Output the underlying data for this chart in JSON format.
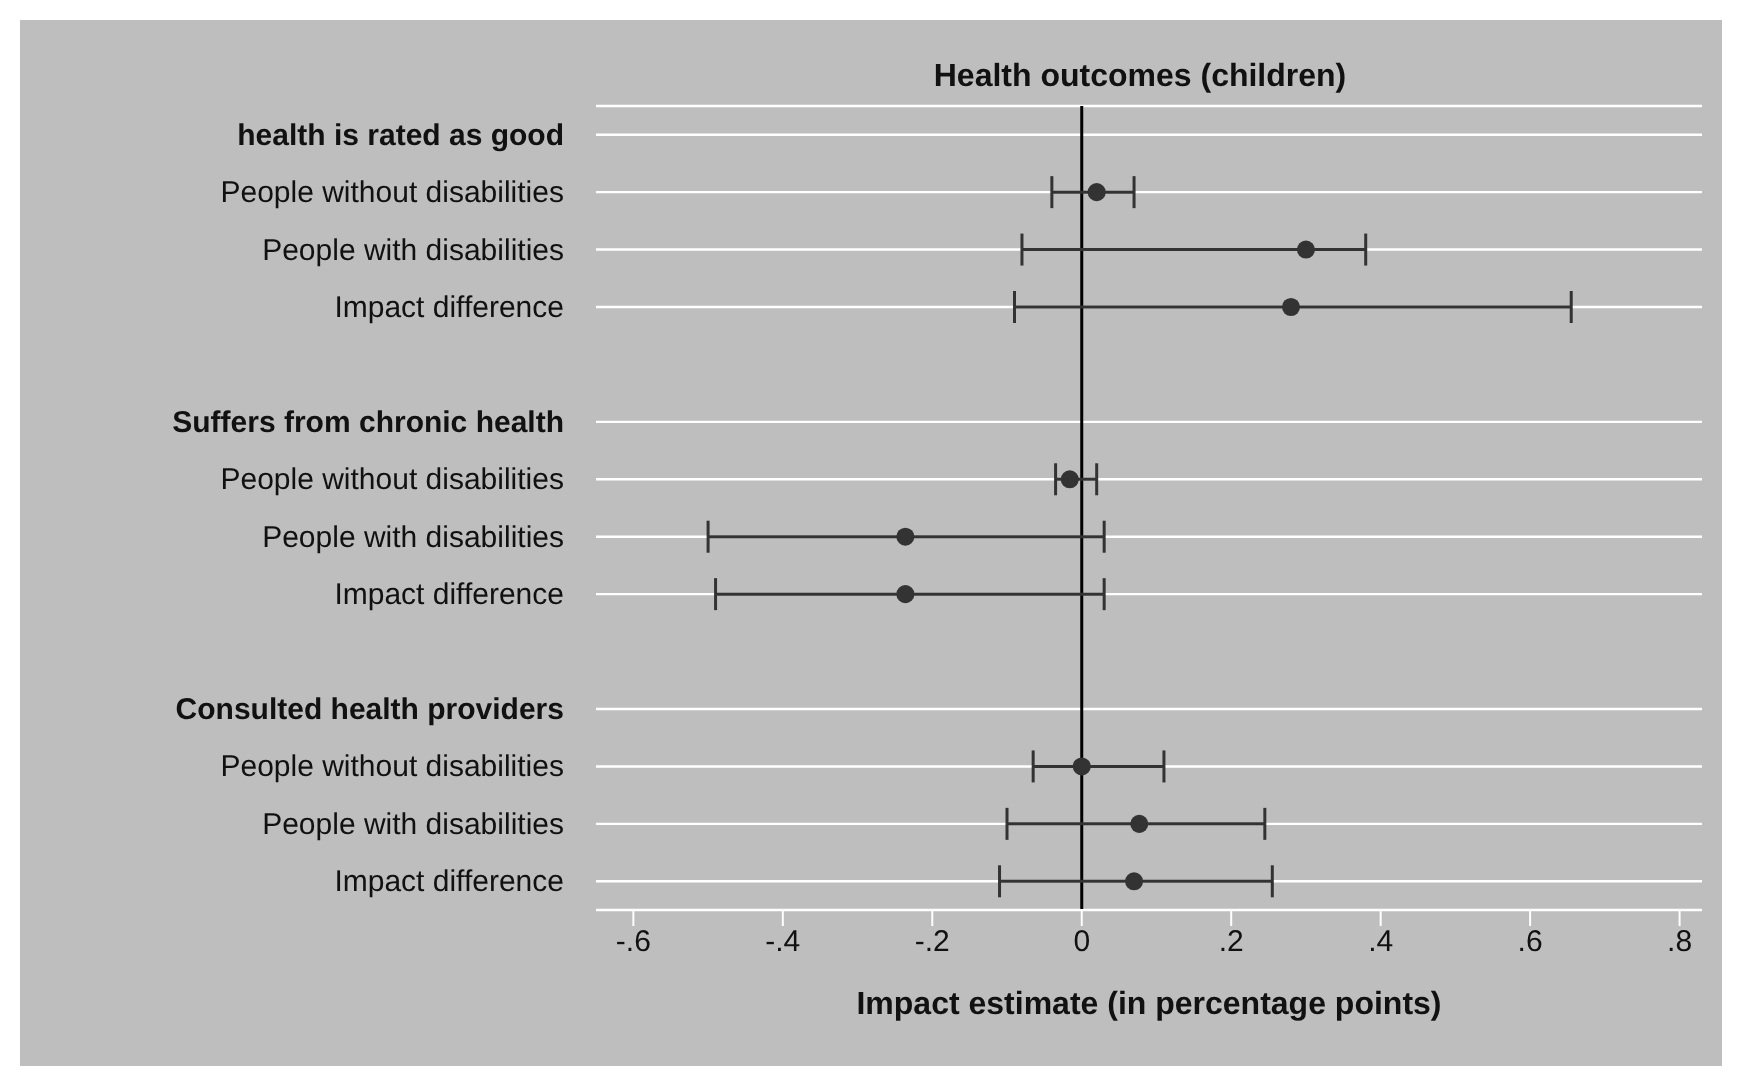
{
  "chart_data": {
    "type": "scatter",
    "title": "Health outcomes (children)",
    "xlabel": "Impact estimate (in percentage points)",
    "categories": [
      "health is rated as good",
      "People without disabilities",
      "People with disabilities",
      "Impact difference",
      null,
      "Suffers from chronic health",
      "People without disabilities",
      "People with disabilities",
      "Impact difference",
      null,
      "Consulted health providers",
      "People without disabilities",
      "People with disabilities",
      "Impact difference"
    ],
    "series": [
      {
        "color": "#333333",
        "values": [
          null,
          0.02,
          0.3,
          0.28,
          null,
          null,
          -0.016,
          -0.236,
          -0.236,
          null,
          null,
          0,
          0.077,
          0.07
        ],
        "errors": [
          null,
          [
            -0.04,
            0.07
          ],
          [
            -0.08,
            0.38
          ],
          [
            -0.09,
            0.655
          ],
          null,
          null,
          [
            -0.035,
            0.02
          ],
          [
            -0.5,
            0.03
          ],
          [
            -0.49,
            0.03
          ],
          null,
          null,
          [
            -0.065,
            0.11
          ],
          [
            -0.1,
            0.245
          ],
          [
            -0.11,
            0.255
          ]
        ]
      }
    ],
    "orientation": "horizontal",
    "marker": "circle",
    "grid": "y",
    "xlim": [
      -0.65,
      0.83
    ],
    "xticks": [
      {
        "value": -0.6,
        "label": "-.6"
      },
      {
        "value": -0.4,
        "label": "-.4"
      },
      {
        "value": -0.2,
        "label": "-.2"
      },
      0,
      {
        "value": 0.2,
        "label": ".2"
      },
      {
        "value": 0.4,
        "label": ".4"
      },
      {
        "value": 0.6,
        "label": ".6"
      },
      {
        "value": 0.8,
        "label": ".8"
      }
    ],
    "ref_lines": [
      {
        "axis": "x",
        "value": 0,
        "color": "#000000"
      }
    ]
  }
}
